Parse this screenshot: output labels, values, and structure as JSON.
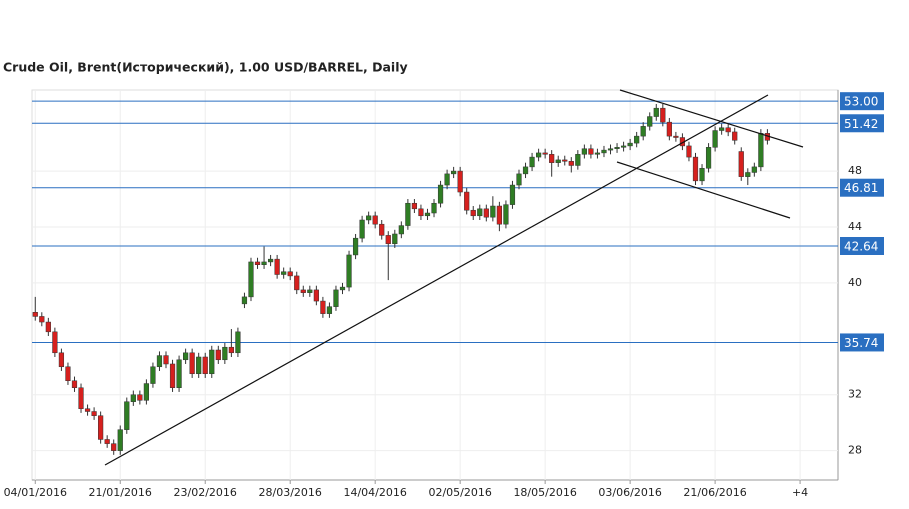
{
  "chart_data": {
    "type": "candlestick",
    "title": "Crude Oil, Brent(Исторический), 1.00 USD/BARREL, Daily",
    "up_color": "#2f7d24",
    "down_color": "#d6201e",
    "level_color": "#2a6fc1",
    "xlim": [
      -0.5,
      122.8
    ],
    "ylim": [
      25.9,
      53.8
    ],
    "yticks": [
      28,
      32,
      40,
      44,
      48
    ],
    "grid": true,
    "xticks": [
      {
        "value": 0,
        "label": "04/01/2016"
      },
      {
        "value": 13,
        "label": "21/01/2016"
      },
      {
        "value": 26,
        "label": "23/02/2016"
      },
      {
        "value": 39,
        "label": "28/03/2016"
      },
      {
        "value": 52,
        "label": "14/04/2016"
      },
      {
        "value": 65,
        "label": "02/05/2016"
      },
      {
        "value": 78,
        "label": "18/05/2016"
      },
      {
        "value": 91,
        "label": "03/06/2016"
      },
      {
        "value": 104,
        "label": "21/06/2016"
      },
      {
        "value": 117,
        "label": "+4"
      }
    ],
    "levels": [
      {
        "value": 53,
        "label": "53.00"
      },
      {
        "value": 51.42,
        "label": "51.42"
      },
      {
        "value": 46.81,
        "label": "46.81"
      },
      {
        "value": 42.64,
        "label": "42.64"
      },
      {
        "value": 35.74,
        "label": "35.74"
      }
    ],
    "ohlc": [
      [
        37.9,
        39,
        37.3,
        37.6
      ],
      [
        37.6,
        37.9,
        36.9,
        37.2
      ],
      [
        37.2,
        37.5,
        36.2,
        36.5
      ],
      [
        36.5,
        36.8,
        34.7,
        35
      ],
      [
        35,
        35.3,
        33.7,
        34
      ],
      [
        34,
        34.3,
        32.7,
        33
      ],
      [
        33,
        33.3,
        32.2,
        32.5
      ],
      [
        32.5,
        32.8,
        30.7,
        31
      ],
      [
        31,
        31.3,
        30.5,
        30.8
      ],
      [
        30.8,
        31.1,
        30.2,
        30.5
      ],
      [
        30.5,
        30.8,
        28.5,
        28.8
      ],
      [
        28.8,
        29.1,
        28.2,
        28.5
      ],
      [
        28.5,
        28.8,
        27.7,
        28
      ],
      [
        28,
        29.8,
        27.7,
        29.5
      ],
      [
        29.5,
        31.8,
        29.2,
        31.5
      ],
      [
        31.5,
        32.3,
        31.2,
        32
      ],
      [
        32,
        32.3,
        31.3,
        31.6
      ],
      [
        31.6,
        33.1,
        31.3,
        32.8
      ],
      [
        32.8,
        34.3,
        32.5,
        34
      ],
      [
        34,
        35.1,
        33.7,
        34.8
      ],
      [
        34.8,
        35.1,
        33.9,
        34.2
      ],
      [
        34.2,
        34.5,
        32.2,
        32.5
      ],
      [
        32.5,
        34.8,
        32.2,
        34.5
      ],
      [
        34.5,
        35.3,
        34.2,
        35
      ],
      [
        35,
        35.3,
        33.2,
        33.5
      ],
      [
        33.5,
        35,
        33.2,
        34.7
      ],
      [
        34.7,
        35,
        33.2,
        33.5
      ],
      [
        33.5,
        35.5,
        33.2,
        35.2
      ],
      [
        35.2,
        35.5,
        34.2,
        34.5
      ],
      [
        34.5,
        35.7,
        34.2,
        35.4
      ],
      [
        35.4,
        36.7,
        34.7,
        35
      ],
      [
        35,
        36.8,
        34.7,
        36.5
      ],
      [
        38.5,
        39.3,
        38.2,
        39
      ],
      [
        39,
        41.8,
        38.7,
        41.5
      ],
      [
        41.5,
        41.8,
        41,
        41.3
      ],
      [
        41.3,
        42.6,
        41,
        41.5
      ],
      [
        41.5,
        42,
        41.2,
        41.7
      ],
      [
        41.7,
        42,
        40.3,
        40.6
      ],
      [
        40.6,
        41.1,
        40.3,
        40.8
      ],
      [
        40.8,
        41.1,
        40.2,
        40.5
      ],
      [
        40.5,
        40.8,
        39.2,
        39.5
      ],
      [
        39.5,
        39.8,
        39,
        39.3
      ],
      [
        39.3,
        39.8,
        39,
        39.5
      ],
      [
        39.5,
        39.8,
        38.4,
        38.7
      ],
      [
        38.7,
        39,
        37.5,
        37.8
      ],
      [
        37.8,
        38.6,
        37.5,
        38.3
      ],
      [
        38.3,
        39.8,
        38,
        39.5
      ],
      [
        39.5,
        40,
        39.2,
        39.7
      ],
      [
        39.7,
        42.3,
        39.4,
        42
      ],
      [
        42,
        43.5,
        41.7,
        43.2
      ],
      [
        43.2,
        44.8,
        42.9,
        44.5
      ],
      [
        44.5,
        45.1,
        44.2,
        44.8
      ],
      [
        44.8,
        45.1,
        43.9,
        44.2
      ],
      [
        44.2,
        44.5,
        43.1,
        43.4
      ],
      [
        43.4,
        43.7,
        40.2,
        42.8
      ],
      [
        42.8,
        43.8,
        42.5,
        43.5
      ],
      [
        43.5,
        44.4,
        43.2,
        44.1
      ],
      [
        44.1,
        46,
        43.8,
        45.7
      ],
      [
        45.7,
        46,
        45,
        45.3
      ],
      [
        45.3,
        45.6,
        44.5,
        44.8
      ],
      [
        44.8,
        45.3,
        44.5,
        45
      ],
      [
        45,
        46,
        44.7,
        45.7
      ],
      [
        45.7,
        47.3,
        45.4,
        47
      ],
      [
        47,
        48.1,
        46.7,
        47.8
      ],
      [
        47.8,
        48.3,
        47.5,
        48
      ],
      [
        48,
        48.3,
        46.2,
        46.5
      ],
      [
        46.5,
        46.8,
        44.9,
        45.2
      ],
      [
        45.2,
        45.5,
        44.5,
        44.8
      ],
      [
        44.8,
        45.6,
        44.5,
        45.3
      ],
      [
        45.3,
        45.6,
        44.4,
        44.7
      ],
      [
        44.7,
        46.2,
        44.4,
        45.5
      ],
      [
        45.5,
        45.8,
        43.7,
        44.2
      ],
      [
        44.2,
        45.9,
        43.9,
        45.6
      ],
      [
        45.6,
        47.3,
        45.3,
        47
      ],
      [
        47,
        48.1,
        46.7,
        47.8
      ],
      [
        47.8,
        48.6,
        47.5,
        48.3
      ],
      [
        48.3,
        49.3,
        48,
        49
      ],
      [
        49,
        49.6,
        48.7,
        49.3
      ],
      [
        49.3,
        49.6,
        48.9,
        49.2
      ],
      [
        49.2,
        49.5,
        47.6,
        48.6
      ],
      [
        48.6,
        49.1,
        48.3,
        48.8
      ],
      [
        48.8,
        49.1,
        48.4,
        48.7
      ],
      [
        48.7,
        49,
        47.9,
        48.4
      ],
      [
        48.4,
        49.5,
        48.1,
        49.2
      ],
      [
        49.2,
        49.9,
        48.9,
        49.6
      ],
      [
        49.6,
        49.9,
        48.9,
        49.2
      ],
      [
        49.2,
        49.6,
        48.9,
        49.3
      ],
      [
        49.3,
        49.8,
        49,
        49.5
      ],
      [
        49.5,
        49.9,
        49.2,
        49.6
      ],
      [
        49.6,
        50,
        49.3,
        49.7
      ],
      [
        49.7,
        50.1,
        49.4,
        49.8
      ],
      [
        49.8,
        50.3,
        49.5,
        50
      ],
      [
        50,
        50.8,
        49.7,
        50.5
      ],
      [
        50.5,
        51.5,
        50.2,
        51.2
      ],
      [
        51.2,
        52.2,
        50.9,
        51.9
      ],
      [
        51.9,
        52.8,
        51.6,
        52.5
      ],
      [
        52.5,
        52.8,
        51.2,
        51.5
      ],
      [
        51.5,
        51.8,
        50.2,
        50.5
      ],
      [
        50.5,
        50.8,
        50.1,
        50.4
      ],
      [
        50.4,
        50.7,
        49.5,
        49.8
      ],
      [
        49.8,
        50.1,
        48.7,
        49
      ],
      [
        49,
        49.3,
        47,
        47.3
      ],
      [
        47.3,
        48.5,
        47,
        48.2
      ],
      [
        48.2,
        50,
        47.9,
        49.7
      ],
      [
        49.7,
        51.2,
        49.4,
        50.9
      ],
      [
        50.9,
        51.4,
        50.6,
        51.1
      ],
      [
        51.1,
        51.4,
        50.5,
        50.8
      ],
      [
        50.8,
        51.1,
        49.9,
        50.2
      ],
      [
        49.4,
        49.7,
        47.3,
        47.6
      ],
      [
        47.6,
        48.2,
        47,
        47.9
      ],
      [
        47.9,
        48.6,
        47.6,
        48.3
      ],
      [
        48.3,
        51,
        48,
        50.7
      ],
      [
        50.7,
        51,
        49.9,
        50.2
      ]
    ]
  }
}
